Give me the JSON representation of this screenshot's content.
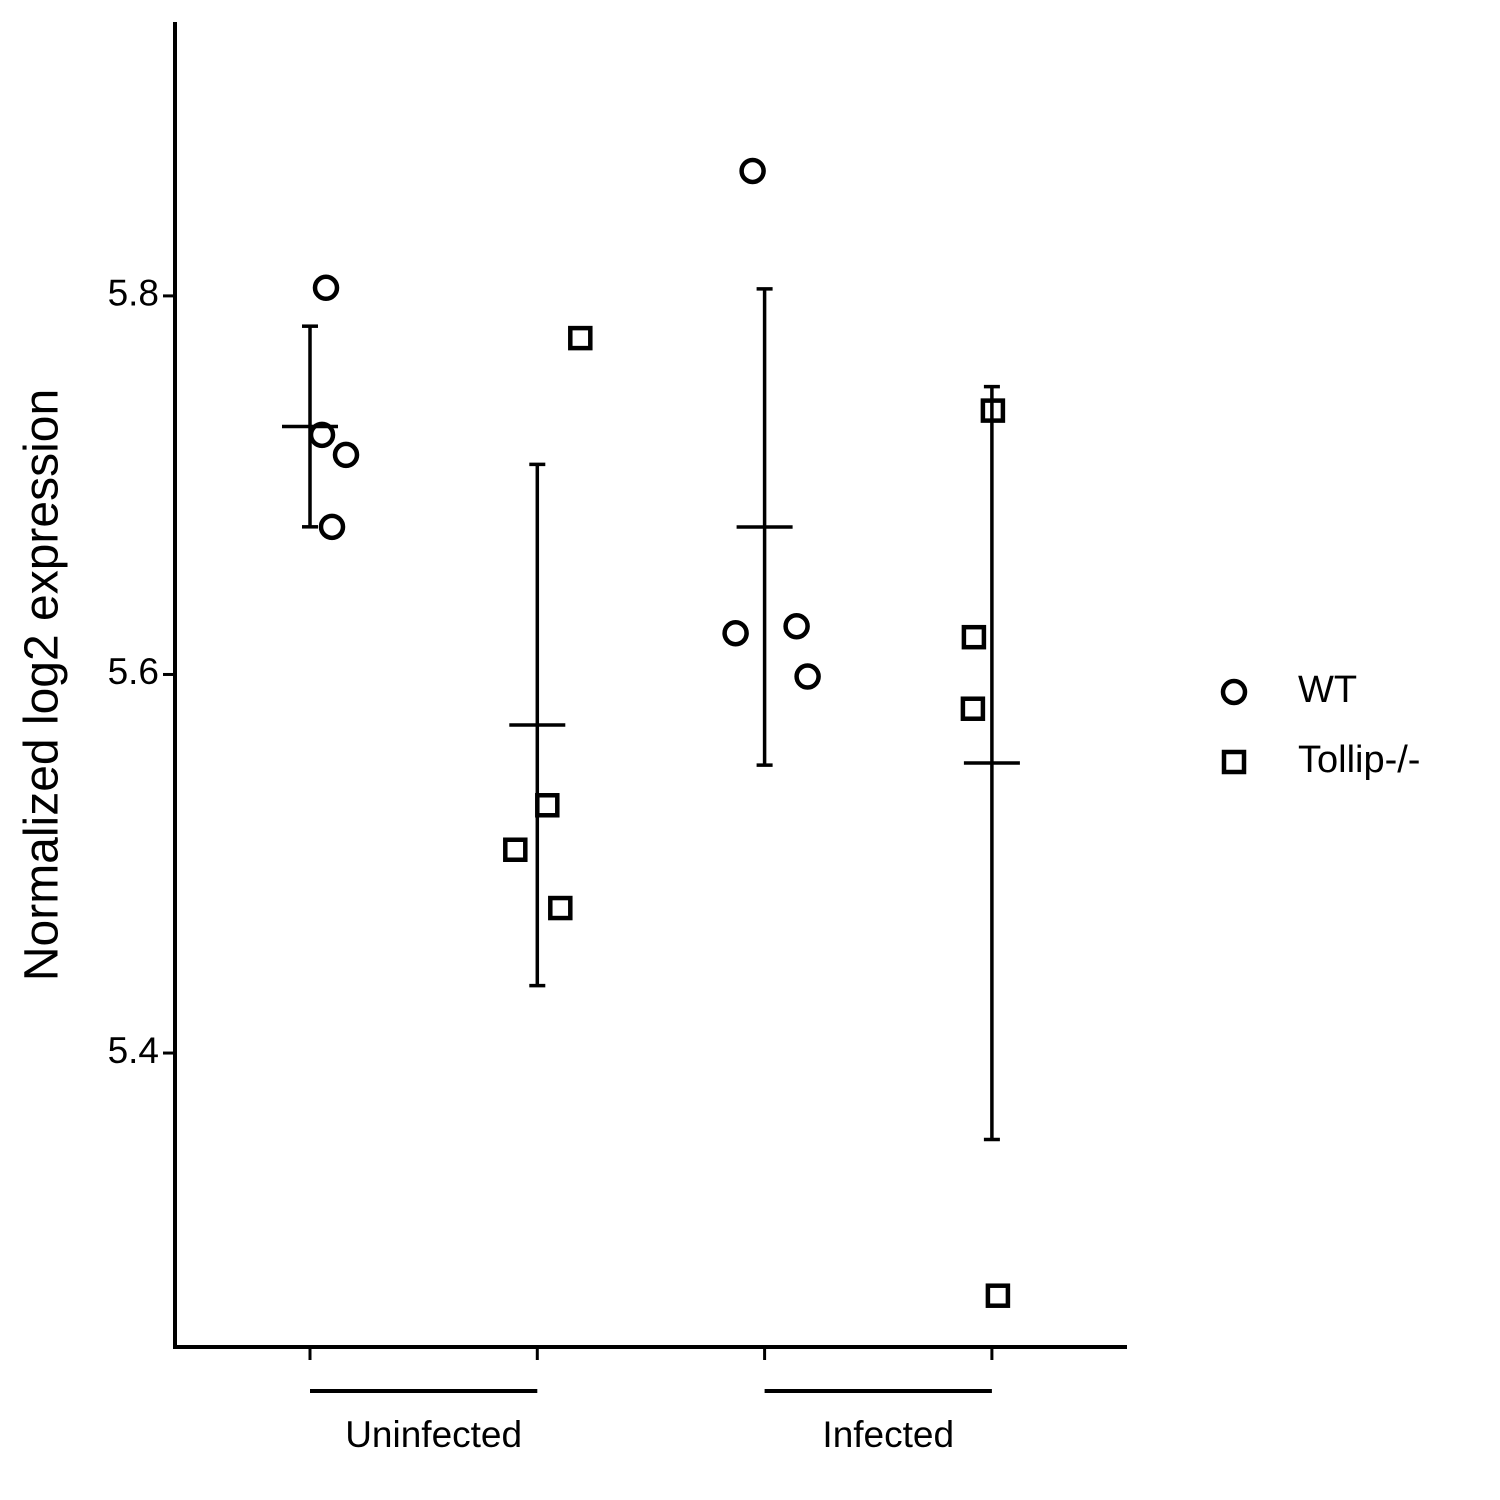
{
  "chart_data": {
    "type": "dotplot",
    "y_label": "Normalized log2 expression",
    "groups": [
      "Uninfected",
      "Infected"
    ],
    "ylim": [
      5.2447,
      5.9447
    ],
    "yticks": [
      5.4,
      5.6,
      5.8
    ],
    "series": [
      {
        "name": "WT",
        "marker": "circle",
        "color": "#000000",
        "values": [
          [
            5.8043,
            5.7266,
            5.716,
            5.678
          ],
          [
            5.866,
            5.6218,
            5.6255,
            5.5989
          ]
        ],
        "means": [
          5.731,
          5.6779
        ],
        "errors": [
          0.053,
          0.1258
        ]
      },
      {
        "name": "Tollip-/-",
        "marker": "square",
        "color": "#000000",
        "values": [
          [
            5.7777,
            5.5309,
            5.5074,
            5.4766
          ],
          [
            5.7394,
            5.6197,
            5.5819,
            5.2718
          ]
        ],
        "means": [
          5.5733,
          5.5532
        ],
        "errors": [
          0.1377,
          0.1989
        ]
      }
    ]
  }
}
